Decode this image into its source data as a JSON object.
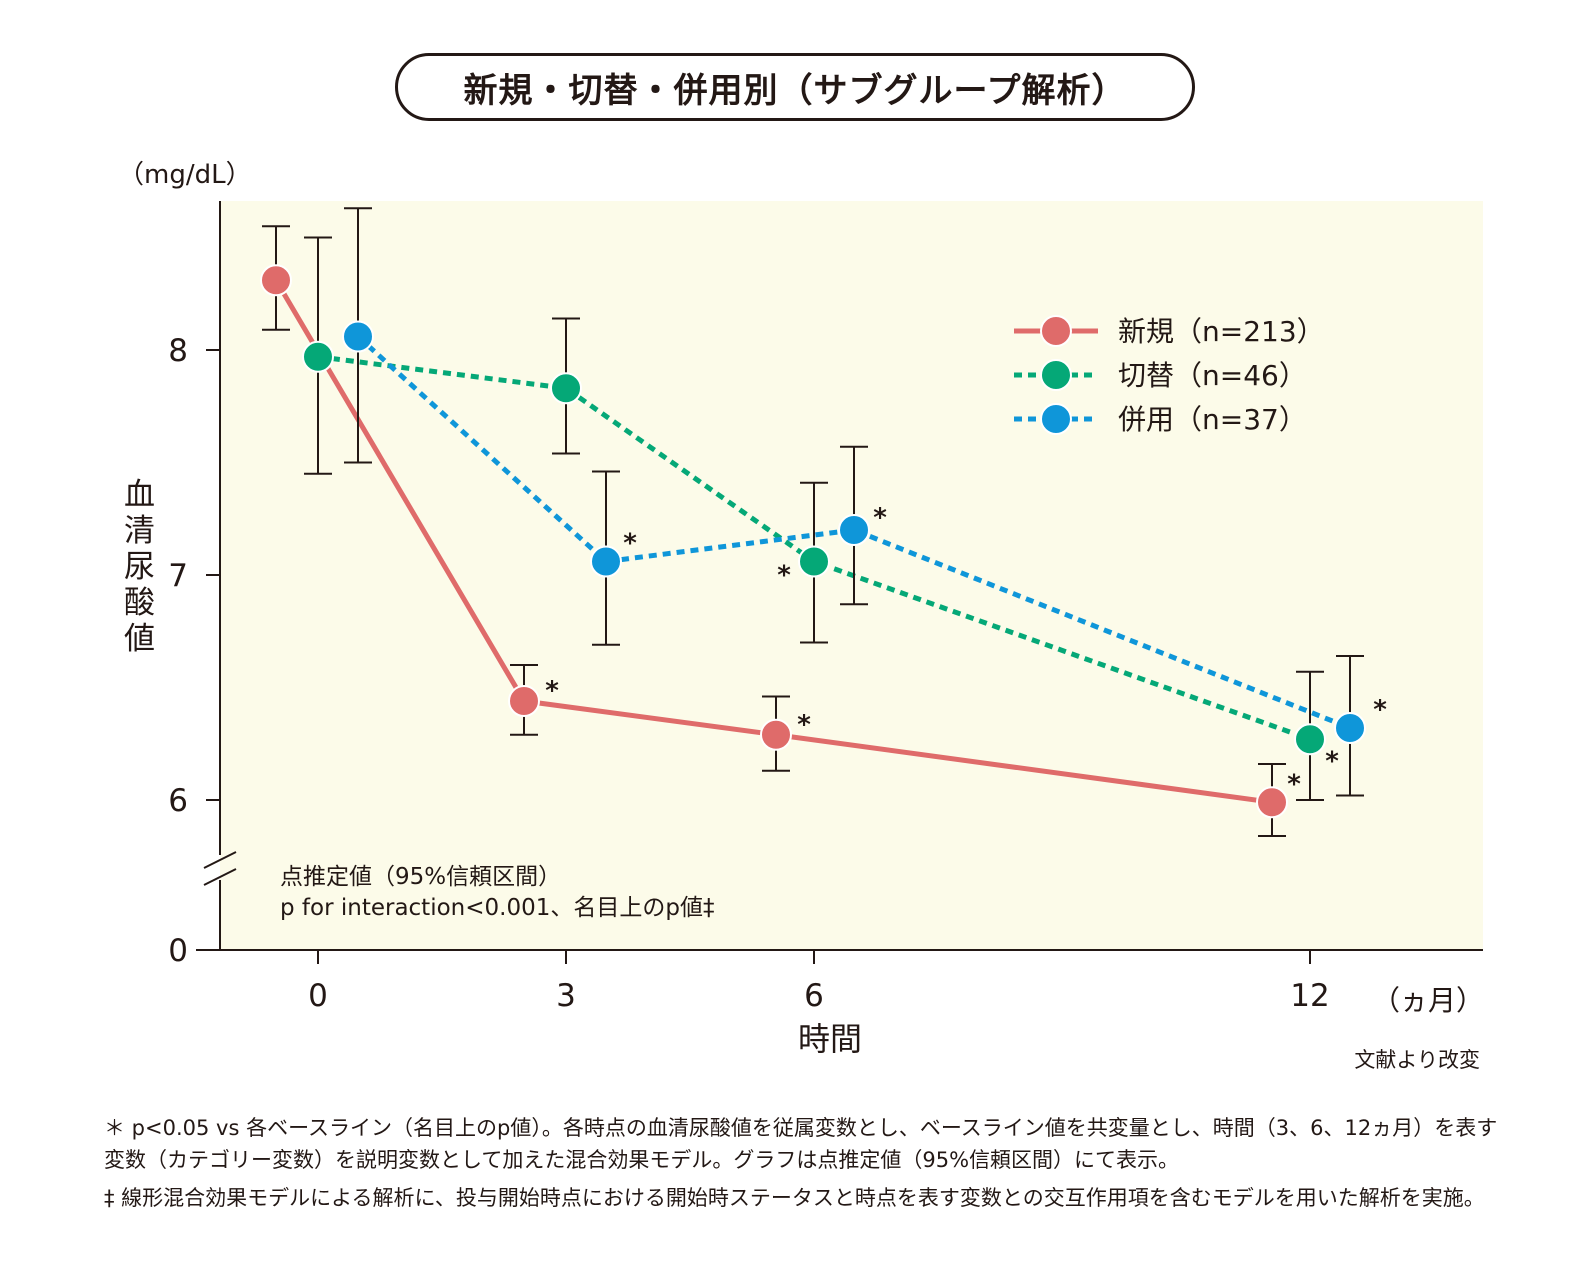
{
  "title": "新規・切替・併用別（サブグループ解析）",
  "colors": {
    "plot_bg": "#fcfbe9",
    "new": "#df6b6a",
    "switch": "#05a877",
    "combo": "#0f96d9",
    "axis": "#231815"
  },
  "chart_data": {
    "type": "line",
    "ylabel": "血清尿酸値",
    "yunit": "（mg/dL）",
    "xlabel": "時間",
    "xunit": "（ヵ月）",
    "x_ticks": [
      "0",
      "3",
      "6",
      "12"
    ],
    "y_ticks": [
      "0",
      "6",
      "7",
      "8"
    ],
    "ylim": [
      5.5,
      8.6
    ],
    "y_axis_break": true,
    "legend_position": "top-right",
    "annotation_lines": [
      "点推定値（95%信頼区間）",
      "p for interaction<0.001、名目上のp値‡"
    ],
    "source": "文献より改変",
    "series": [
      {
        "name": "新規（n=213）",
        "style": "solid",
        "x": [
          0,
          3,
          6,
          12
        ],
        "y": [
          8.31,
          6.44,
          6.29,
          5.99
        ],
        "ci_low": [
          8.09,
          6.29,
          6.13,
          5.84
        ],
        "ci_high": [
          8.55,
          6.6,
          6.46,
          6.16
        ],
        "significant": [
          false,
          true,
          true,
          true
        ]
      },
      {
        "name": "切替（n=46）",
        "style": "dotted",
        "x": [
          0,
          3,
          6,
          12
        ],
        "y": [
          7.97,
          7.83,
          7.06,
          6.27
        ],
        "ci_low": [
          7.45,
          7.54,
          6.7,
          6.0
        ],
        "ci_high": [
          8.5,
          8.14,
          7.41,
          6.57
        ],
        "significant": [
          false,
          false,
          true,
          true
        ]
      },
      {
        "name": "併用（n=37）",
        "style": "dotted",
        "x": [
          0,
          3,
          6,
          12
        ],
        "y": [
          8.06,
          7.06,
          7.2,
          6.32
        ],
        "ci_low": [
          7.5,
          6.69,
          6.87,
          6.02
        ],
        "ci_high": [
          8.63,
          7.46,
          7.57,
          6.64
        ],
        "significant": [
          false,
          true,
          true,
          true
        ]
      }
    ]
  },
  "significance_symbol": "＊",
  "footnotes": [
    "＊ p<0.05 vs 各ベースライン（名目上のp値）。各時点の血清尿酸値を従属変数とし、ベースライン値を共変量とし、時間（3、6、12ヵ月）を表す変数（カテゴリー変数）を説明変数として加えた混合効果モデル。グラフは点推定値（95%信頼区間）にて表示。",
    "‡ 線形混合効果モデルによる解析に、投与開始時点における開始時ステータスと時点を表す変数との交互作用項を含むモデルを用いた解析を実施。"
  ]
}
